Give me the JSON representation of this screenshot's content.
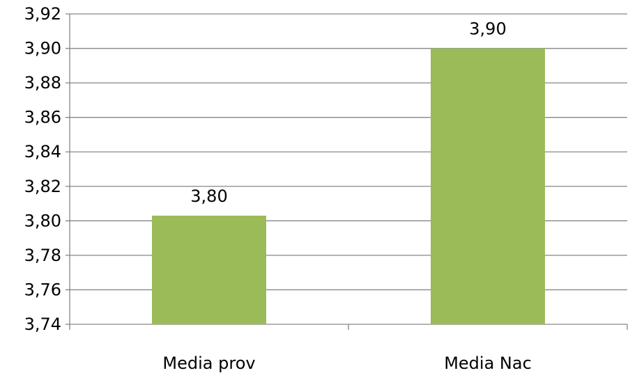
{
  "chart_data": {
    "type": "bar",
    "title": "",
    "xlabel": "",
    "ylabel": "",
    "categories": [
      "Media prov",
      "Media Nac"
    ],
    "values": [
      3.803,
      3.9
    ],
    "data_labels": [
      "3,80",
      "3,90"
    ],
    "ylim": [
      3.74,
      3.92
    ],
    "yticks": [
      3.74,
      3.76,
      3.78,
      3.8,
      3.82,
      3.84,
      3.86,
      3.88,
      3.9,
      3.92
    ],
    "ytick_labels": [
      "3,74",
      "3,76",
      "3,78",
      "3,80",
      "3,82",
      "3,84",
      "3,86",
      "3,88",
      "3,90",
      "3,92"
    ],
    "grid": true,
    "legend": "none",
    "bar_color": "#9BBB59",
    "grid_color": "#868686"
  }
}
